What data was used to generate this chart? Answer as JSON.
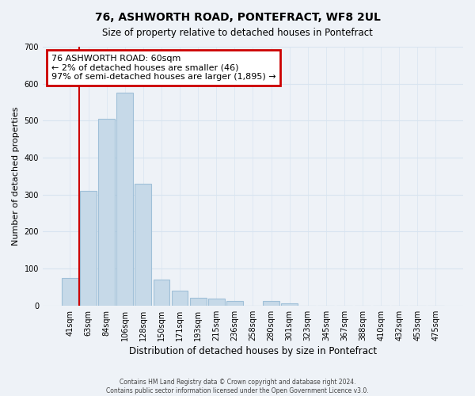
{
  "title": "76, ASHWORTH ROAD, PONTEFRACT, WF8 2UL",
  "subtitle": "Size of property relative to detached houses in Pontefract",
  "xlabel": "Distribution of detached houses by size in Pontefract",
  "ylabel": "Number of detached properties",
  "bar_labels": [
    "41sqm",
    "63sqm",
    "84sqm",
    "106sqm",
    "128sqm",
    "150sqm",
    "171sqm",
    "193sqm",
    "215sqm",
    "236sqm",
    "258sqm",
    "280sqm",
    "301sqm",
    "323sqm",
    "345sqm",
    "367sqm",
    "388sqm",
    "410sqm",
    "432sqm",
    "453sqm",
    "475sqm"
  ],
  "bar_values": [
    75,
    310,
    505,
    575,
    330,
    70,
    40,
    20,
    18,
    12,
    0,
    12,
    7,
    0,
    0,
    0,
    0,
    0,
    0,
    0,
    0
  ],
  "bar_color": "#c6d9e8",
  "bar_edge_color": "#a0c0d8",
  "annotation_text_line1": "76 ASHWORTH ROAD: 60sqm",
  "annotation_text_line2": "← 2% of detached houses are smaller (46)",
  "annotation_text_line3": "97% of semi-detached houses are larger (1,895) →",
  "annotation_box_facecolor": "#ffffff",
  "annotation_box_edgecolor": "#cc0000",
  "red_line_color": "#cc0000",
  "ylim": [
    0,
    700
  ],
  "yticks": [
    0,
    100,
    200,
    300,
    400,
    500,
    600,
    700
  ],
  "grid_color": "#d8e4f0",
  "background_color": "#eef2f7",
  "footer_line1": "Contains HM Land Registry data © Crown copyright and database right 2024.",
  "footer_line2": "Contains public sector information licensed under the Open Government Licence v3.0."
}
